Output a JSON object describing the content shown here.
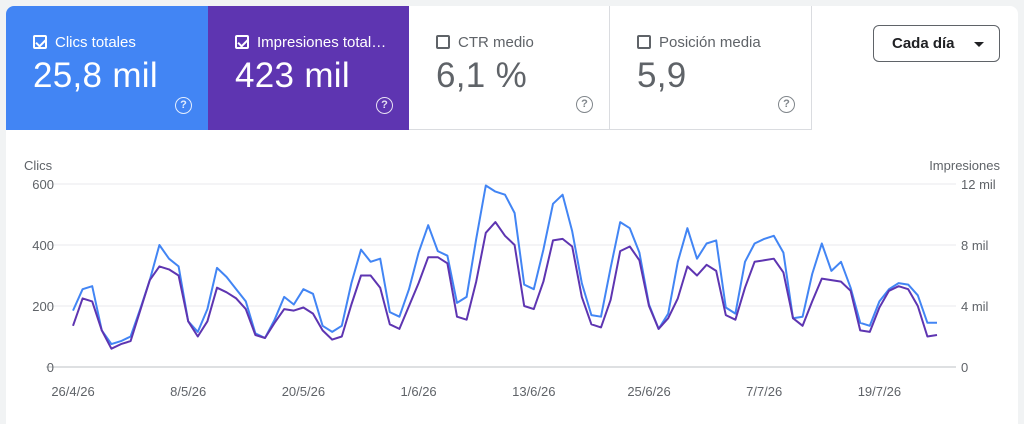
{
  "metrics": [
    {
      "label": "Clics totales",
      "value": "25,8 mil",
      "checked": true
    },
    {
      "label": "Impresiones total…",
      "value": "423 mil",
      "checked": true
    },
    {
      "label": "CTR medio",
      "value": "6,1 %",
      "checked": false
    },
    {
      "label": "Posición media",
      "value": "5,9",
      "checked": false
    }
  ],
  "help_icon": "help-circle-icon",
  "dropdown": {
    "label": "Cada día"
  },
  "colors": {
    "clicks": "#4285f4",
    "impressions": "#5e35b1",
    "grid": "#e8eaed"
  },
  "chart_data": {
    "type": "line",
    "left_axis_label": "Clics",
    "right_axis_label": "Impresiones",
    "left_ticks": [
      "0",
      "200",
      "400",
      "600"
    ],
    "right_ticks": [
      "0",
      "4 mil",
      "8 mil",
      "12 mil"
    ],
    "left_ylim": [
      0,
      600
    ],
    "right_ylim": [
      0,
      12000
    ],
    "grid": true,
    "x_tick_labels": [
      "26/4/26",
      "8/5/26",
      "20/5/26",
      "1/6/26",
      "13/6/26",
      "25/6/26",
      "7/7/26",
      "19/7/26"
    ],
    "x_tick_indices": [
      0,
      12,
      24,
      36,
      48,
      60,
      72,
      84
    ],
    "series": [
      {
        "name": "Clics totales",
        "axis": "left",
        "values": [
          185,
          255,
          265,
          120,
          75,
          85,
          100,
          190,
          285,
          400,
          355,
          330,
          150,
          115,
          190,
          325,
          295,
          255,
          215,
          110,
          95,
          155,
          230,
          205,
          255,
          240,
          135,
          115,
          135,
          275,
          385,
          345,
          355,
          180,
          165,
          255,
          375,
          465,
          380,
          365,
          210,
          230,
          420,
          595,
          575,
          565,
          505,
          270,
          255,
          385,
          535,
          565,
          445,
          275,
          170,
          165,
          325,
          475,
          455,
          375,
          205,
          125,
          175,
          345,
          455,
          355,
          405,
          415,
          195,
          175,
          345,
          405,
          420,
          430,
          375,
          160,
          165,
          305,
          405,
          315,
          345,
          260,
          145,
          135,
          215,
          255,
          275,
          270,
          235,
          145,
          145
        ]
      },
      {
        "name": "Impresiones totales",
        "axis": "right",
        "values": [
          2700,
          4500,
          4300,
          2400,
          1200,
          1500,
          1700,
          3700,
          5700,
          6600,
          6400,
          6000,
          3000,
          2000,
          3000,
          5200,
          4900,
          4500,
          3800,
          2100,
          1900,
          2900,
          3800,
          3700,
          3900,
          3500,
          2400,
          1800,
          2000,
          4100,
          6000,
          6000,
          5200,
          2800,
          2500,
          4000,
          5500,
          7200,
          7200,
          6800,
          3300,
          3100,
          5600,
          8800,
          9500,
          8600,
          8000,
          4000,
          3800,
          5600,
          8300,
          8400,
          7900,
          4600,
          2800,
          2600,
          4400,
          7600,
          7900,
          7000,
          4000,
          2500,
          3200,
          4500,
          6600,
          6000,
          6700,
          6300,
          3400,
          3100,
          5200,
          6900,
          7000,
          7100,
          6200,
          3200,
          2700,
          4300,
          5800,
          5700,
          5600,
          5000,
          2400,
          2300,
          3900,
          5000,
          5300,
          5100,
          4000,
          2000,
          2100
        ]
      }
    ]
  }
}
